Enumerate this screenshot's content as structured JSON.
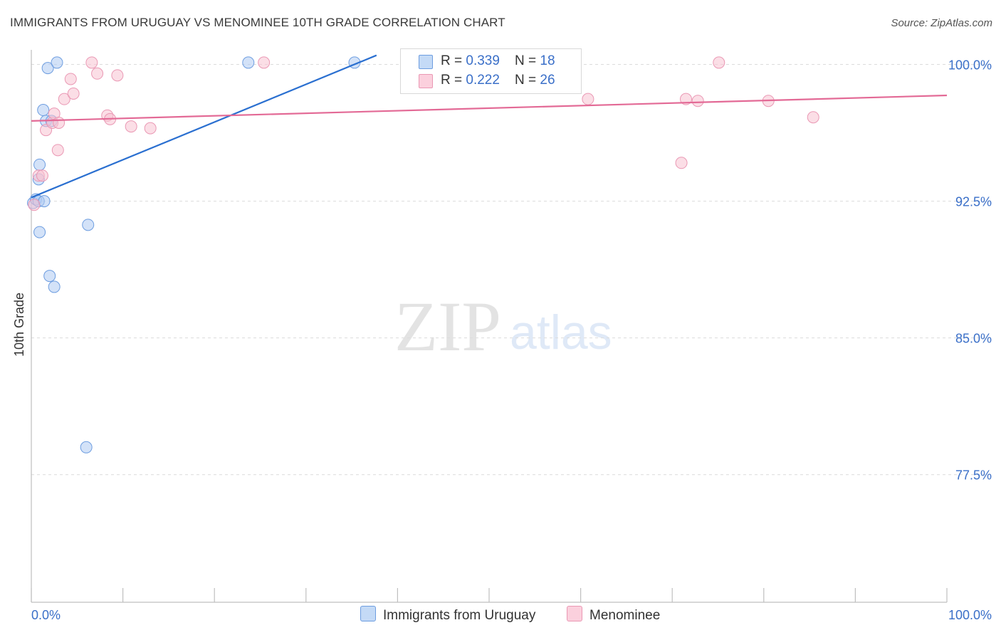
{
  "title": "IMMIGRANTS FROM URUGUAY VS MENOMINEE 10TH GRADE CORRELATION CHART",
  "source": "Source: ZipAtlas.com",
  "watermark": {
    "zip": "ZIP",
    "atlas": "atlas"
  },
  "colors": {
    "series1_fill": "#aecbf2",
    "series1_stroke": "#6d9de0",
    "series1_line": "#2a6fd0",
    "series2_fill": "#f7c2d2",
    "series2_stroke": "#ea98b4",
    "series2_line": "#e36a96",
    "axis_label": "#3a6fc8",
    "grid": "#dcdcdc"
  },
  "legend": {
    "rows": [
      {
        "r_label": "R = ",
        "r_value": "0.339",
        "n_label": "N = ",
        "n_value": "18"
      },
      {
        "r_label": "R = ",
        "r_value": "0.222",
        "n_label": "N = ",
        "n_value": "26"
      }
    ]
  },
  "chart_data": {
    "type": "scatter",
    "title": "IMMIGRANTS FROM URUGUAY VS MENOMINEE 10TH GRADE CORRELATION CHART",
    "xlabel": "",
    "ylabel": "10th Grade",
    "xlim": [
      0,
      100
    ],
    "ylim": [
      70.5,
      100.8
    ],
    "x_tick_labels": [
      "0.0%",
      "100.0%"
    ],
    "y_ticks": [
      100.0,
      92.5,
      85.0,
      77.5
    ],
    "y_tick_labels": [
      "100.0%",
      "92.5%",
      "85.0%",
      "77.5%"
    ],
    "grid": true,
    "legend_position": "top-center",
    "series": [
      {
        "name": "Immigrants from Uruguay",
        "r": 0.339,
        "n": 18,
        "points": [
          [
            0.2,
            92.4
          ],
          [
            0.5,
            92.6
          ],
          [
            0.8,
            92.5
          ],
          [
            1.4,
            92.5
          ],
          [
            0.8,
            93.7
          ],
          [
            1.3,
            97.5
          ],
          [
            1.6,
            96.9
          ],
          [
            2.2,
            96.9
          ],
          [
            1.8,
            99.8
          ],
          [
            2.8,
            100.1
          ],
          [
            0.9,
            94.5
          ],
          [
            0.9,
            90.8
          ],
          [
            6.2,
            91.2
          ],
          [
            2.0,
            88.4
          ],
          [
            2.5,
            87.8
          ],
          [
            6.0,
            79.0
          ],
          [
            23.7,
            100.1
          ],
          [
            35.3,
            100.1
          ]
        ],
        "trend": [
          [
            0,
            92.7
          ],
          [
            37.7,
            100.5
          ]
        ]
      },
      {
        "name": "Menominee",
        "r": 0.222,
        "n": 26,
        "points": [
          [
            0.3,
            92.3
          ],
          [
            0.8,
            93.9
          ],
          [
            1.2,
            93.9
          ],
          [
            1.6,
            96.4
          ],
          [
            2.3,
            96.8
          ],
          [
            2.5,
            97.3
          ],
          [
            3.0,
            96.8
          ],
          [
            2.9,
            95.3
          ],
          [
            3.6,
            98.1
          ],
          [
            4.3,
            99.2
          ],
          [
            4.6,
            98.4
          ],
          [
            6.6,
            100.1
          ],
          [
            7.2,
            99.5
          ],
          [
            9.4,
            99.4
          ],
          [
            8.3,
            97.2
          ],
          [
            8.6,
            97.0
          ],
          [
            10.9,
            96.6
          ],
          [
            13.0,
            96.5
          ],
          [
            25.4,
            100.1
          ],
          [
            60.8,
            98.1
          ],
          [
            75.1,
            100.1
          ],
          [
            71.5,
            98.1
          ],
          [
            72.8,
            98.0
          ],
          [
            80.5,
            98.0
          ],
          [
            85.4,
            97.1
          ],
          [
            71.0,
            94.6
          ]
        ],
        "trend": [
          [
            0,
            96.9
          ],
          [
            100,
            98.3
          ]
        ]
      }
    ]
  }
}
